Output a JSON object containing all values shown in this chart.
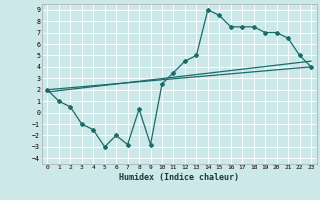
{
  "xlabel": "Humidex (Indice chaleur)",
  "background_color": "#cde8e8",
  "grid_color": "#ffffff",
  "line_color": "#1a6b6b",
  "xlim": [
    -0.5,
    23.5
  ],
  "ylim": [
    -4.5,
    9.5
  ],
  "xticks": [
    0,
    1,
    2,
    3,
    4,
    5,
    6,
    7,
    8,
    9,
    10,
    11,
    12,
    13,
    14,
    15,
    16,
    17,
    18,
    19,
    20,
    21,
    22,
    23
  ],
  "yticks": [
    -4,
    -3,
    -2,
    -1,
    0,
    1,
    2,
    3,
    4,
    5,
    6,
    7,
    8,
    9
  ],
  "series1_x": [
    0,
    1,
    2,
    3,
    4,
    5,
    6,
    7,
    8,
    9,
    10,
    11,
    12,
    13,
    14,
    15,
    16,
    17,
    18,
    19,
    20,
    21,
    22,
    23
  ],
  "series1_y": [
    2.0,
    1.0,
    0.5,
    -1.0,
    -1.5,
    -3.0,
    -2.0,
    -2.8,
    0.3,
    -2.8,
    2.5,
    3.5,
    4.5,
    5.0,
    9.0,
    8.5,
    7.5,
    7.5,
    7.5,
    7.0,
    7.0,
    6.5,
    5.0,
    4.0
  ],
  "series2_x": [
    0,
    23
  ],
  "series2_y": [
    2.0,
    4.0
  ],
  "series3_x": [
    0,
    23
  ],
  "series3_y": [
    1.8,
    4.5
  ]
}
